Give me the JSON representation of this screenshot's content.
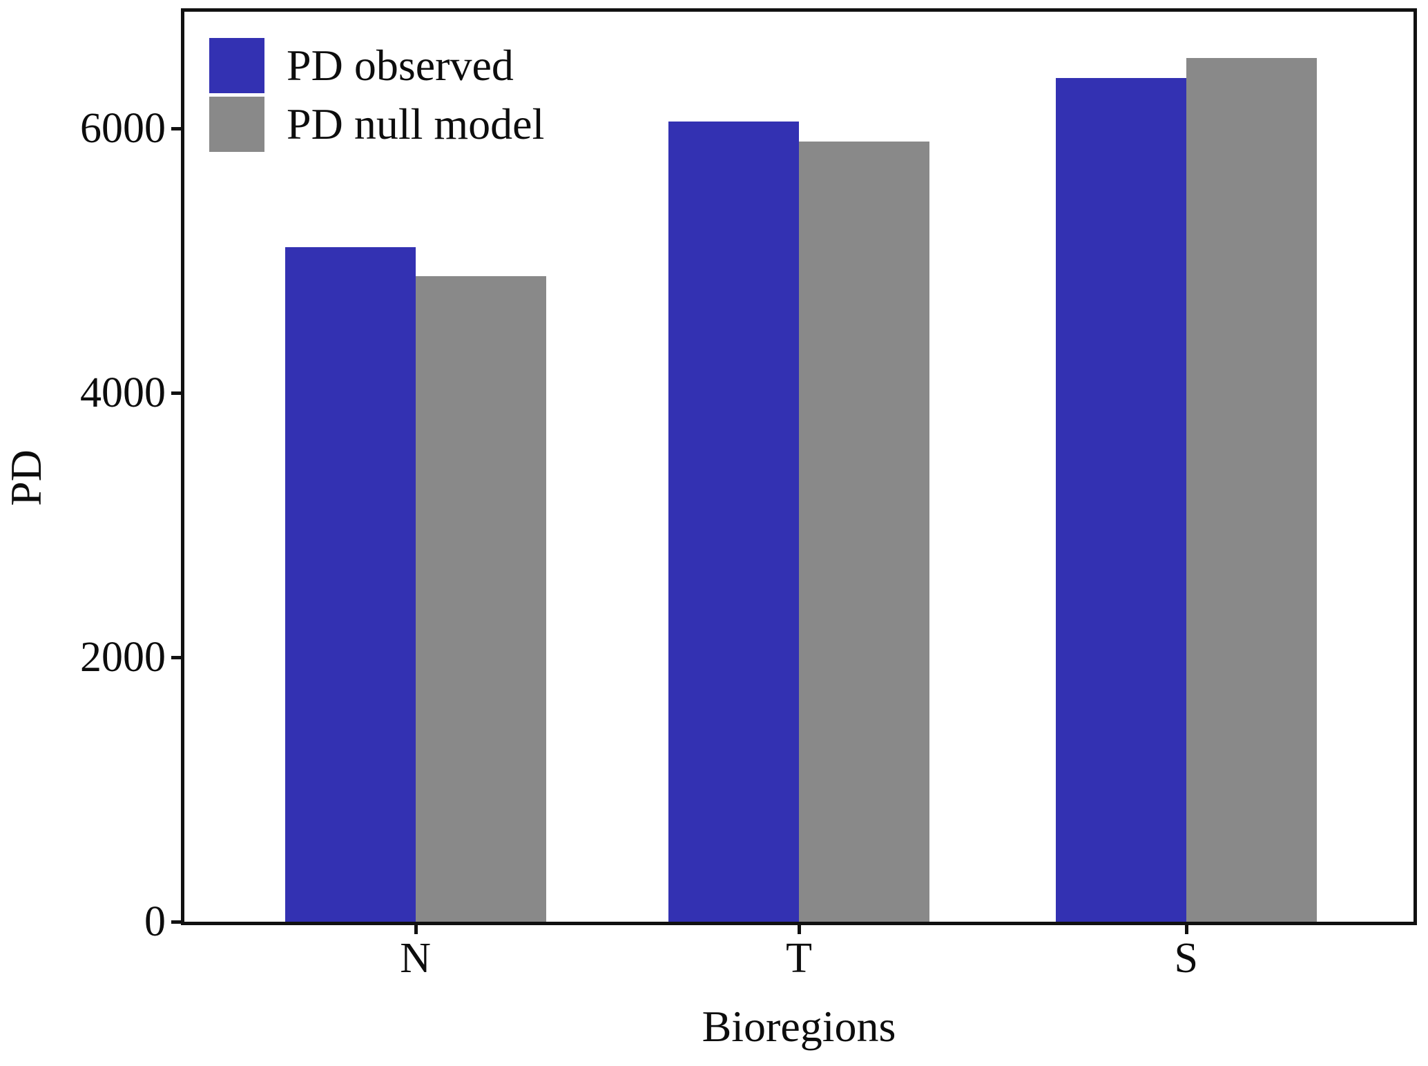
{
  "chart_data": {
    "type": "bar",
    "title": "",
    "xlabel": "Bioregions",
    "ylabel": "PD",
    "categories": [
      "N",
      "T",
      "S"
    ],
    "series": [
      {
        "name": "PD observed",
        "color": "#3331b2",
        "values": [
          5100,
          6050,
          6380
        ]
      },
      {
        "name": "PD null model",
        "color": "#898989",
        "values": [
          4880,
          5900,
          6530
        ]
      }
    ],
    "yticks": [
      0,
      2000,
      4000,
      6000
    ],
    "ylim": [
      0,
      6880
    ],
    "grid": false,
    "legend_position": "upper-left-inside",
    "axis_color": "#111111",
    "text_color": "#0d0d0d",
    "background": "#ffffff"
  }
}
